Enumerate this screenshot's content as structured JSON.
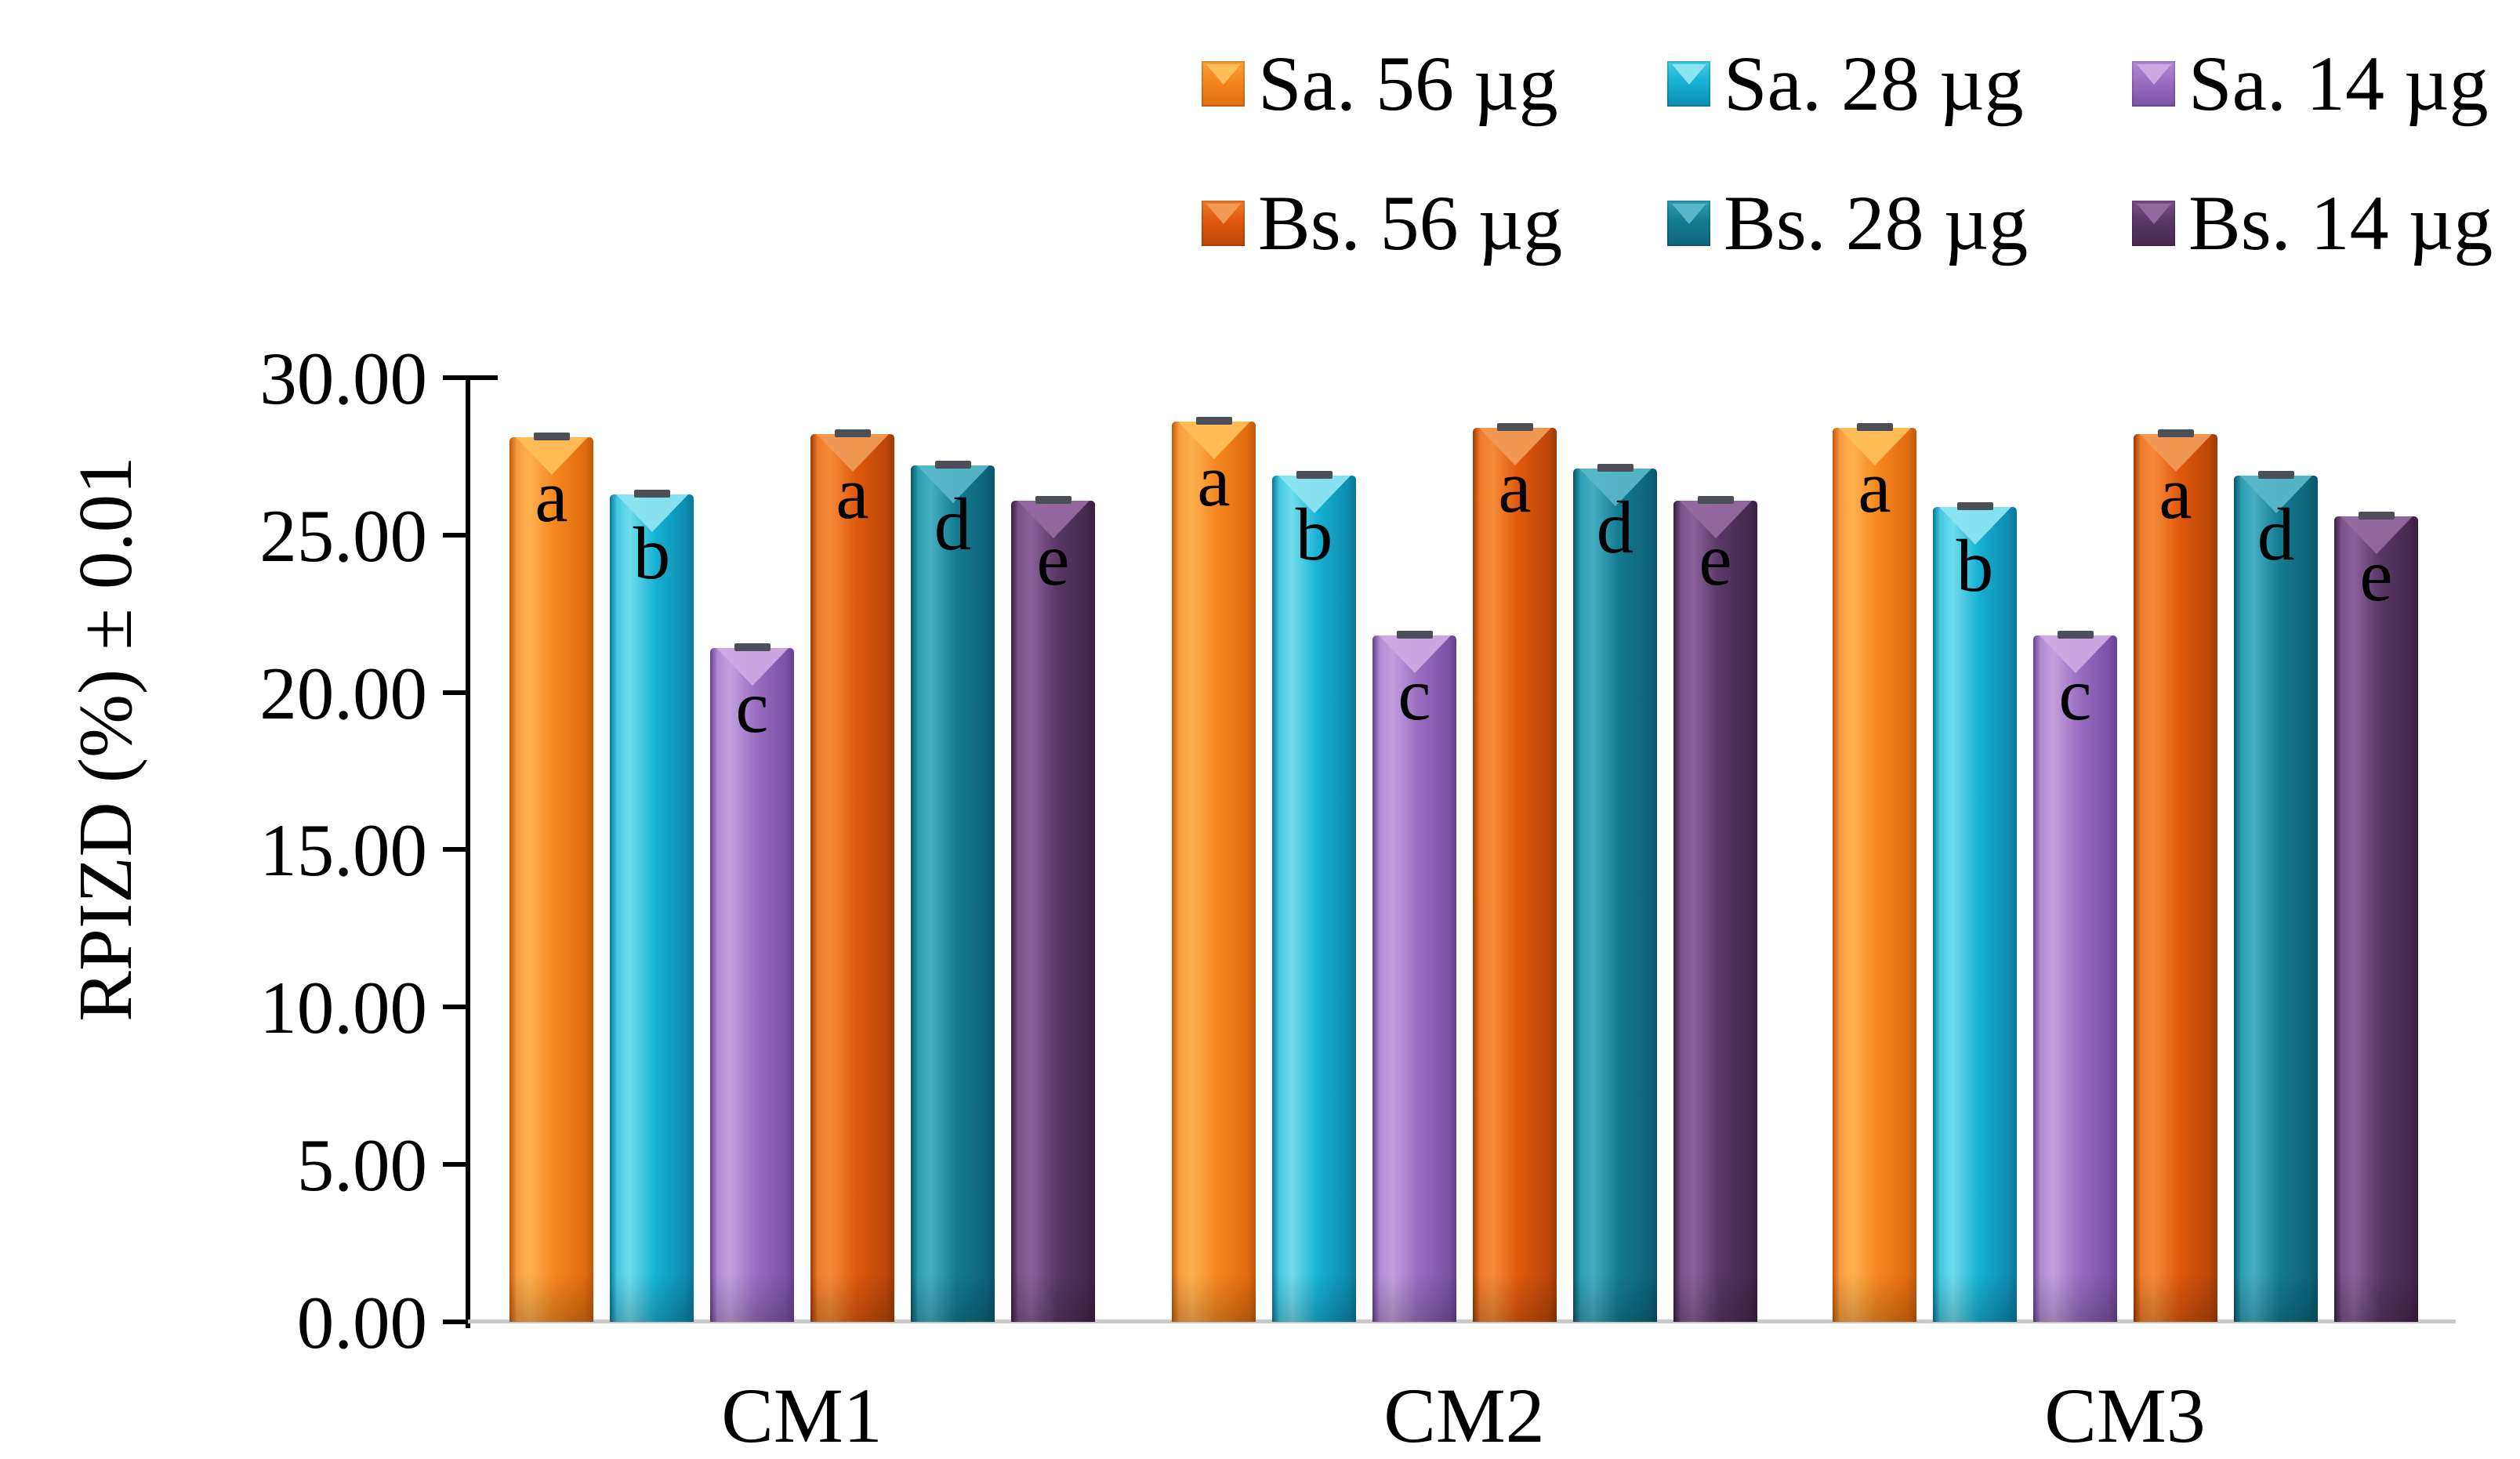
{
  "chart_data": {
    "type": "bar",
    "title": "",
    "xlabel": "",
    "ylabel": "RPIZD (%) ± 0.01",
    "ylim": [
      0,
      30
    ],
    "grid": false,
    "legend_position": "top-right, two rows, column-major",
    "y_ticks": [
      "0.00",
      "5.00",
      "10.00",
      "15.00",
      "20.00",
      "25.00",
      "30.00"
    ],
    "categories": [
      "CM1",
      "CM2",
      "CM3"
    ],
    "series": [
      {
        "name": "Sa. 56 µg",
        "color": "#f6861f",
        "values": [
          28.1,
          28.6,
          28.4
        ],
        "letters": [
          "a",
          "a",
          "a"
        ]
      },
      {
        "name": "Sa. 28 µg",
        "color": "#17b2d4",
        "values": [
          26.3,
          26.9,
          25.9
        ],
        "letters": [
          "b",
          "b",
          "b"
        ]
      },
      {
        "name": "Sa. 14 µg",
        "color": "#9a6dc1",
        "values": [
          21.4,
          21.8,
          21.8
        ],
        "letters": [
          "c",
          "c",
          "c"
        ]
      },
      {
        "name": "Bs. 56 µg",
        "color": "#e0590d",
        "values": [
          28.2,
          28.4,
          28.2
        ],
        "letters": [
          "a",
          "a",
          "a"
        ]
      },
      {
        "name": "Bs. 28 µg",
        "color": "#137b91",
        "values": [
          27.2,
          27.1,
          26.9
        ],
        "letters": [
          "d",
          "d",
          "d"
        ]
      },
      {
        "name": "Bs. 14 µg",
        "color": "#5a3766",
        "values": [
          26.1,
          26.1,
          25.6
        ],
        "letters": [
          "e",
          "e",
          "e"
        ]
      }
    ],
    "legend": [
      [
        "Sa. 56 µg",
        "Sa. 28 µg",
        "Sa. 14 µg"
      ],
      [
        "Bs. 56 µg",
        "Bs. 28 µg",
        "Bs. 14 µg"
      ]
    ],
    "error_bars": "± 0.01 (small gray caps on every bar top)"
  }
}
